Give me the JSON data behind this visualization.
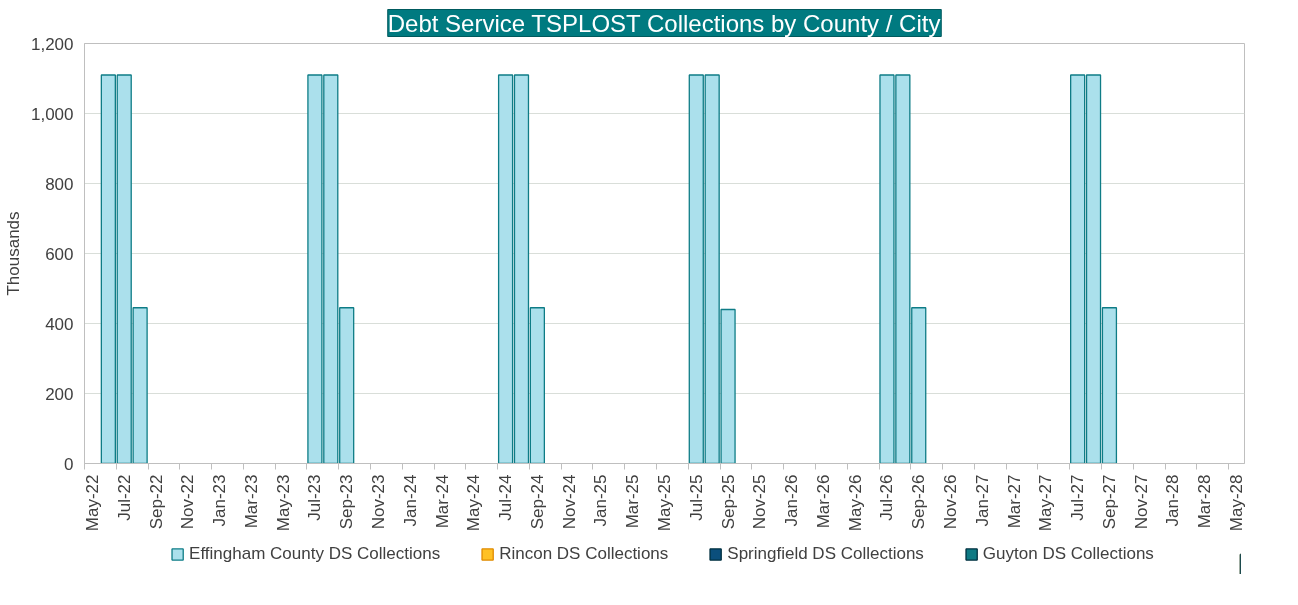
{
  "chart_data": {
    "type": "bar",
    "title": "Debt Service TSPLOST Collections by County / City",
    "ylabel": "Thousands",
    "categories": [
      "May-22",
      null,
      "Jul-22",
      null,
      "Sep-22",
      null,
      "Nov-22",
      null,
      "Jan-23",
      null,
      "Mar-23",
      null,
      "May-23",
      null,
      "Jul-23",
      null,
      "Sep-23",
      null,
      "Nov-23",
      null,
      "Jan-24",
      null,
      "Mar-24",
      null,
      "May-24",
      null,
      "Jul-24",
      null,
      "Sep-24",
      null,
      "Nov-24",
      null,
      "Jan-25",
      null,
      "Mar-25",
      null,
      "May-25",
      null,
      "Jul-25",
      null,
      "Sep-25",
      null,
      "Nov-25",
      null,
      "Jan-26",
      null,
      "Mar-26",
      null,
      "May-26",
      null,
      "Jul-26",
      null,
      "Sep-26",
      null,
      "Nov-26",
      null,
      "Jan-27",
      null,
      "Mar-27",
      null,
      "May-27",
      null,
      "Jul-27",
      null,
      "Sep-27",
      null,
      "Nov-27",
      null,
      "Jan-28",
      null,
      "Mar-28",
      null,
      "May-28"
    ],
    "series": [
      {
        "name": "Effingham County DS Collections",
        "color": "#abe0ec",
        "values": [
          null,
          1110,
          1110,
          445,
          null,
          null,
          null,
          null,
          null,
          null,
          null,
          null,
          null,
          null,
          1110,
          1110,
          445,
          null,
          null,
          null,
          null,
          null,
          null,
          null,
          null,
          null,
          1110,
          1110,
          445,
          null,
          null,
          null,
          null,
          null,
          null,
          null,
          null,
          null,
          1110,
          1110,
          440,
          null,
          null,
          null,
          null,
          null,
          null,
          null,
          null,
          null,
          1110,
          1110,
          445,
          null,
          null,
          null,
          null,
          null,
          null,
          null,
          null,
          null,
          1110,
          1110,
          445,
          null,
          null,
          null,
          null,
          null,
          null,
          null,
          null
        ]
      },
      {
        "name": "Rincon DS Collections",
        "color": "#ffc125",
        "values": [
          null,
          null,
          null,
          null,
          null,
          null,
          null,
          null,
          null,
          null,
          null,
          null,
          null,
          null,
          null,
          null,
          null,
          null,
          null,
          null,
          null,
          null,
          null,
          null,
          null,
          null,
          null,
          null,
          null,
          null,
          null,
          null,
          null,
          null,
          null,
          null,
          null,
          null,
          null,
          null,
          null,
          null,
          null,
          null,
          null,
          null,
          null,
          null,
          null,
          null,
          null,
          null,
          null,
          null,
          null,
          null,
          null,
          null,
          null,
          null,
          null,
          null,
          null,
          null,
          null,
          null,
          null,
          null,
          null,
          null,
          null,
          null,
          null
        ]
      },
      {
        "name": "Springfield DS Collections",
        "color": "#0b4f7c",
        "values": [
          null,
          null,
          null,
          null,
          null,
          null,
          null,
          null,
          null,
          null,
          null,
          null,
          null,
          null,
          null,
          null,
          null,
          null,
          null,
          null,
          null,
          null,
          null,
          null,
          null,
          null,
          null,
          null,
          null,
          null,
          null,
          null,
          null,
          null,
          null,
          null,
          null,
          null,
          null,
          null,
          null,
          null,
          null,
          null,
          null,
          null,
          null,
          null,
          null,
          null,
          null,
          null,
          null,
          null,
          null,
          null,
          null,
          null,
          null,
          null,
          null,
          null,
          null,
          null,
          null,
          null,
          null,
          null,
          null,
          null,
          null,
          null,
          null
        ]
      },
      {
        "name": "Guyton DS Collections",
        "color": "#0e7a84",
        "values": [
          null,
          null,
          null,
          null,
          null,
          null,
          null,
          null,
          null,
          null,
          null,
          null,
          null,
          null,
          null,
          null,
          null,
          null,
          null,
          null,
          null,
          null,
          null,
          null,
          null,
          null,
          null,
          null,
          null,
          null,
          null,
          null,
          null,
          null,
          null,
          null,
          null,
          null,
          null,
          null,
          null,
          null,
          null,
          null,
          null,
          null,
          null,
          null,
          null,
          null,
          null,
          null,
          null,
          null,
          null,
          null,
          null,
          null,
          null,
          null,
          null,
          null,
          null,
          null,
          null,
          null,
          null,
          null,
          null,
          null,
          null,
          null,
          null
        ]
      }
    ],
    "ylim": [
      0,
      1200
    ],
    "yticks": [
      0,
      200,
      400,
      600,
      800,
      {
        "value": 1000,
        "label": "1,000"
      },
      {
        "value": 1200,
        "label": "1,200"
      }
    ],
    "grid": "y",
    "legend": "bottom"
  }
}
